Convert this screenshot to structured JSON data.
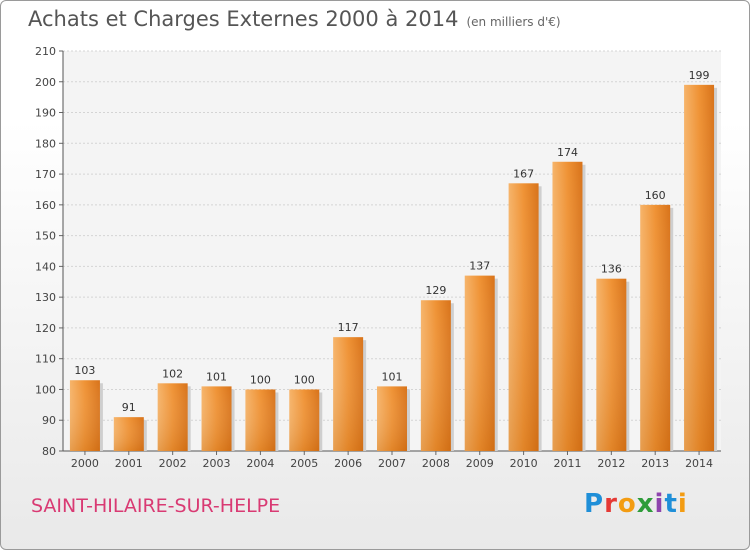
{
  "chart_data": {
    "type": "bar",
    "title": "Achats et Charges Externes 2000 à 2014",
    "subtitle": "(en milliers d'€)",
    "categories": [
      "2000",
      "2001",
      "2002",
      "2003",
      "2004",
      "2005",
      "2006",
      "2007",
      "2008",
      "2009",
      "2010",
      "2011",
      "2012",
      "2013",
      "2014"
    ],
    "values": [
      103,
      91,
      102,
      101,
      100,
      100,
      117,
      101,
      129,
      137,
      167,
      174,
      136,
      160,
      199
    ],
    "ylim": [
      80,
      210
    ],
    "yticks": [
      80,
      90,
      100,
      110,
      120,
      130,
      140,
      150,
      160,
      170,
      180,
      190,
      200,
      210
    ],
    "grid": true,
    "bar_color": "#f0932b"
  },
  "footer": {
    "location": "SAINT-HILAIRE-SUR-HELPE",
    "logo": [
      "P",
      "r",
      "o",
      "x",
      "i",
      "t",
      "i"
    ]
  }
}
